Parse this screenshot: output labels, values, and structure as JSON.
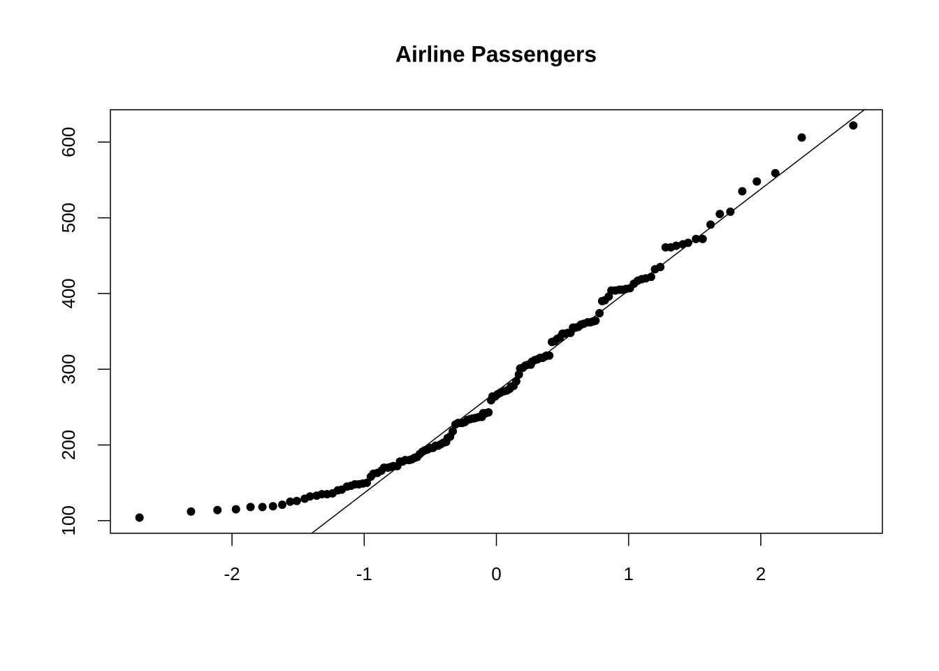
{
  "chart_data": {
    "type": "scatter",
    "title": "Airline Passengers",
    "x": [
      -2.7,
      -2.31,
      -2.11,
      -1.97,
      -1.86,
      -1.77,
      -1.69,
      -1.62,
      -1.56,
      -1.51,
      -1.45,
      -1.41,
      -1.36,
      -1.32,
      -1.28,
      -1.24,
      -1.2,
      -1.17,
      -1.13,
      -1.1,
      -1.07,
      -1.04,
      -1.01,
      -0.98,
      -0.95,
      -0.93,
      -0.9,
      -0.87,
      -0.85,
      -0.82,
      -0.8,
      -0.78,
      -0.75,
      -0.73,
      -0.71,
      -0.69,
      -0.66,
      -0.64,
      -0.62,
      -0.6,
      -0.58,
      -0.56,
      -0.54,
      -0.52,
      -0.5,
      -0.48,
      -0.46,
      -0.44,
      -0.42,
      -0.4,
      -0.38,
      -0.37,
      -0.35,
      -0.33,
      -0.31,
      -0.29,
      -0.27,
      -0.26,
      -0.24,
      -0.22,
      -0.2,
      -0.18,
      -0.17,
      -0.15,
      -0.13,
      -0.11,
      -0.1,
      -0.08,
      -0.06,
      -0.04,
      -0.03,
      -0.01,
      0.01,
      0.03,
      0.04,
      0.06,
      0.08,
      0.1,
      0.11,
      0.13,
      0.15,
      0.17,
      0.18,
      0.2,
      0.22,
      0.24,
      0.26,
      0.27,
      0.29,
      0.31,
      0.33,
      0.35,
      0.37,
      0.38,
      0.4,
      0.42,
      0.44,
      0.46,
      0.48,
      0.5,
      0.52,
      0.54,
      0.56,
      0.58,
      0.6,
      0.62,
      0.64,
      0.66,
      0.69,
      0.71,
      0.73,
      0.75,
      0.78,
      0.8,
      0.82,
      0.85,
      0.87,
      0.9,
      0.93,
      0.95,
      0.98,
      1.01,
      1.04,
      1.07,
      1.1,
      1.13,
      1.17,
      1.2,
      1.24,
      1.28,
      1.32,
      1.36,
      1.41,
      1.45,
      1.51,
      1.56,
      1.62,
      1.69,
      1.77,
      1.86,
      1.97,
      2.11,
      2.31,
      2.7
    ],
    "values": [
      104,
      112,
      114,
      115,
      118,
      118,
      119,
      121,
      125,
      126,
      129,
      132,
      133,
      135,
      135,
      136,
      140,
      141,
      145,
      146,
      148,
      148,
      149,
      150,
      158,
      162,
      163,
      166,
      170,
      170,
      171,
      172,
      172,
      178,
      178,
      180,
      180,
      181,
      183,
      184,
      188,
      191,
      193,
      194,
      196,
      196,
      199,
      199,
      201,
      203,
      204,
      209,
      211,
      218,
      227,
      229,
      229,
      229,
      230,
      233,
      234,
      235,
      235,
      236,
      237,
      237,
      242,
      242,
      243,
      259,
      264,
      264,
      267,
      269,
      270,
      271,
      272,
      274,
      277,
      278,
      284,
      293,
      301,
      302,
      305,
      306,
      306,
      310,
      312,
      313,
      315,
      315,
      317,
      318,
      318,
      336,
      337,
      340,
      342,
      347,
      347,
      348,
      348,
      355,
      355,
      356,
      359,
      360,
      362,
      362,
      363,
      364,
      374,
      390,
      391,
      396,
      404,
      404,
      405,
      405,
      406,
      407,
      413,
      417,
      419,
      420,
      422,
      432,
      435,
      461,
      461,
      463,
      465,
      467,
      472,
      472,
      491,
      505,
      508,
      535,
      548,
      559,
      606,
      622
    ],
    "color": "#000000",
    "xlim": [
      -2.92,
      2.92
    ],
    "xticks": [
      -2,
      -1,
      0,
      1,
      2
    ],
    "ylim": [
      83.28,
      642.72
    ],
    "yticks": [
      100,
      200,
      300,
      400,
      500,
      600
    ]
  }
}
